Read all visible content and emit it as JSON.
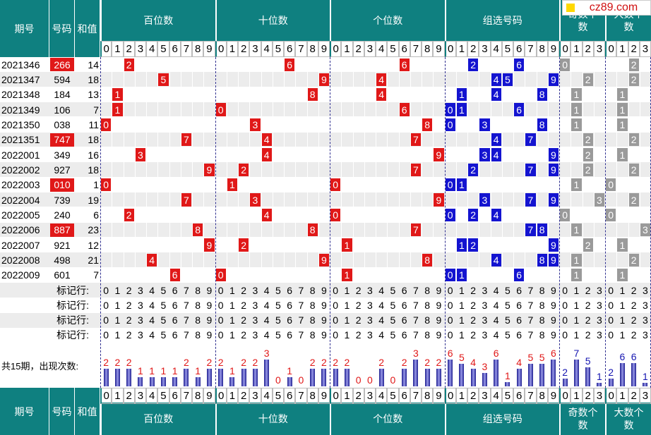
{
  "watermark": "cz89.com",
  "header": {
    "issue": "期号",
    "number": "号码",
    "sum": "和值",
    "groups": [
      "百位数",
      "十位数",
      "个位数",
      "组选号码",
      "奇数个数",
      "大数个数"
    ]
  },
  "digits": [
    0,
    1,
    2,
    3,
    4,
    5,
    6,
    7,
    8,
    9
  ],
  "count_digits": [
    0,
    1,
    2,
    3
  ],
  "rows": [
    {
      "issue": "2021346",
      "number": "266",
      "sum": 14,
      "hundreds": 2,
      "tens": 6,
      "units": 6,
      "group": [
        2,
        6
      ],
      "odd": 0,
      "big": 2
    },
    {
      "issue": "2021347",
      "number": "594",
      "sum": 18,
      "hundreds": 5,
      "tens": 9,
      "units": 4,
      "group": [
        4,
        5,
        9
      ],
      "odd": 2,
      "big": 2
    },
    {
      "issue": "2021348",
      "number": "184",
      "sum": 13,
      "hundreds": 1,
      "tens": 8,
      "units": 4,
      "group": [
        1,
        4,
        8
      ],
      "odd": 1,
      "big": 1
    },
    {
      "issue": "2021349",
      "number": "106",
      "sum": 7,
      "hundreds": 1,
      "tens": 0,
      "units": 6,
      "group": [
        0,
        1,
        6
      ],
      "odd": 1,
      "big": 1
    },
    {
      "issue": "2021350",
      "number": "038",
      "sum": 11,
      "hundreds": 0,
      "tens": 3,
      "units": 8,
      "group": [
        0,
        3,
        8
      ],
      "odd": 1,
      "big": 1
    },
    {
      "issue": "2021351",
      "number": "747",
      "sum": 18,
      "hundreds": 7,
      "tens": 4,
      "units": 7,
      "group": [
        4,
        7
      ],
      "odd": 2,
      "big": 2
    },
    {
      "issue": "2022001",
      "number": "349",
      "sum": 16,
      "hundreds": 3,
      "tens": 4,
      "units": 9,
      "group": [
        3,
        4,
        9
      ],
      "odd": 2,
      "big": 1
    },
    {
      "issue": "2022002",
      "number": "927",
      "sum": 18,
      "hundreds": 9,
      "tens": 2,
      "units": 7,
      "group": [
        2,
        7,
        9
      ],
      "odd": 2,
      "big": 2
    },
    {
      "issue": "2022003",
      "number": "010",
      "sum": 1,
      "hundreds": 0,
      "tens": 1,
      "units": 0,
      "group": [
        0,
        1
      ],
      "odd": 1,
      "big": 0
    },
    {
      "issue": "2022004",
      "number": "739",
      "sum": 19,
      "hundreds": 7,
      "tens": 3,
      "units": 9,
      "group": [
        3,
        7,
        9
      ],
      "odd": 3,
      "big": 2
    },
    {
      "issue": "2022005",
      "number": "240",
      "sum": 6,
      "hundreds": 2,
      "tens": 4,
      "units": 0,
      "group": [
        0,
        2,
        4
      ],
      "odd": 0,
      "big": 0
    },
    {
      "issue": "2022006",
      "number": "887",
      "sum": 23,
      "hundreds": 8,
      "tens": 8,
      "units": 7,
      "group": [
        7,
        8
      ],
      "odd": 1,
      "big": 3
    },
    {
      "issue": "2022007",
      "number": "921",
      "sum": 12,
      "hundreds": 9,
      "tens": 2,
      "units": 1,
      "group": [
        1,
        2,
        9
      ],
      "odd": 2,
      "big": 1
    },
    {
      "issue": "2022008",
      "number": "498",
      "sum": 21,
      "hundreds": 4,
      "tens": 9,
      "units": 8,
      "group": [
        4,
        8,
        9
      ],
      "odd": 1,
      "big": 2
    },
    {
      "issue": "2022009",
      "number": "601",
      "sum": 7,
      "hundreds": 6,
      "tens": 0,
      "units": 1,
      "group": [
        0,
        1,
        6
      ],
      "odd": 1,
      "big": 1
    }
  ],
  "markers": [
    "标记行:",
    "标记行:",
    "标记行:",
    "标记行:"
  ],
  "counts": {
    "label": "共15期，出现次数:",
    "hundreds": [
      2,
      2,
      2,
      1,
      1,
      1,
      1,
      2,
      1,
      2
    ],
    "tens": [
      2,
      1,
      2,
      2,
      3,
      0,
      1,
      0,
      2,
      2
    ],
    "units": [
      2,
      2,
      0,
      0,
      2,
      0,
      2,
      3,
      2,
      2
    ],
    "group": [
      6,
      5,
      4,
      3,
      6,
      1,
      4,
      5,
      5,
      6
    ],
    "odd": [
      2,
      7,
      5,
      1
    ],
    "big": [
      2,
      6,
      6,
      1
    ]
  }
}
